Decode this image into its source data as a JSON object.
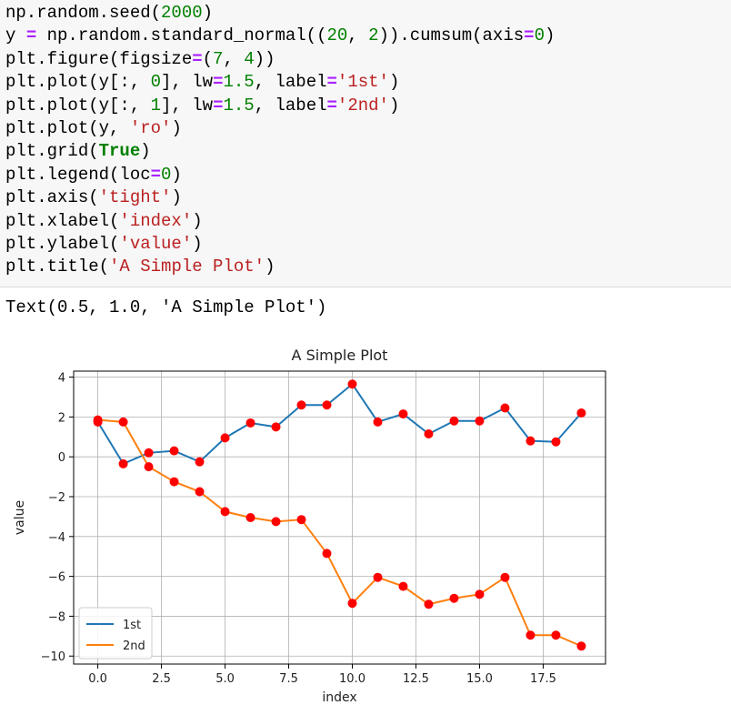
{
  "code_cell": {
    "lines": [
      [
        {
          "t": "np.random.seed(",
          "c": ""
        },
        {
          "t": "2000",
          "c": "num"
        },
        {
          "t": ")",
          "c": ""
        }
      ],
      [
        {
          "t": "y ",
          "c": ""
        },
        {
          "t": "=",
          "c": "op"
        },
        {
          "t": " np.random.standard_normal((",
          "c": ""
        },
        {
          "t": "20",
          "c": "num"
        },
        {
          "t": ", ",
          "c": ""
        },
        {
          "t": "2",
          "c": "num"
        },
        {
          "t": ")).cumsum(axis",
          "c": ""
        },
        {
          "t": "=",
          "c": "op"
        },
        {
          "t": "0",
          "c": "num"
        },
        {
          "t": ")",
          "c": ""
        }
      ],
      [
        {
          "t": "plt.figure(figsize",
          "c": ""
        },
        {
          "t": "=",
          "c": "op"
        },
        {
          "t": "(",
          "c": ""
        },
        {
          "t": "7",
          "c": "num"
        },
        {
          "t": ", ",
          "c": ""
        },
        {
          "t": "4",
          "c": "num"
        },
        {
          "t": "))",
          "c": ""
        }
      ],
      [
        {
          "t": "plt.plot(y[:, ",
          "c": ""
        },
        {
          "t": "0",
          "c": "num"
        },
        {
          "t": "], lw",
          "c": ""
        },
        {
          "t": "=",
          "c": "op"
        },
        {
          "t": "1.5",
          "c": "num"
        },
        {
          "t": ", label",
          "c": ""
        },
        {
          "t": "=",
          "c": "op"
        },
        {
          "t": "'1st'",
          "c": "str"
        },
        {
          "t": ")",
          "c": ""
        }
      ],
      [
        {
          "t": "plt.plot(y[:, ",
          "c": ""
        },
        {
          "t": "1",
          "c": "num"
        },
        {
          "t": "], lw",
          "c": ""
        },
        {
          "t": "=",
          "c": "op"
        },
        {
          "t": "1.5",
          "c": "num"
        },
        {
          "t": ", label",
          "c": ""
        },
        {
          "t": "=",
          "c": "op"
        },
        {
          "t": "'2nd'",
          "c": "str"
        },
        {
          "t": ")",
          "c": ""
        }
      ],
      [
        {
          "t": "plt.plot(y, ",
          "c": ""
        },
        {
          "t": "'ro'",
          "c": "str"
        },
        {
          "t": ")",
          "c": ""
        }
      ],
      [
        {
          "t": "plt.grid(",
          "c": ""
        },
        {
          "t": "True",
          "c": "kw"
        },
        {
          "t": ")",
          "c": ""
        }
      ],
      [
        {
          "t": "plt.legend(loc",
          "c": ""
        },
        {
          "t": "=",
          "c": "op"
        },
        {
          "t": "0",
          "c": "num"
        },
        {
          "t": ")",
          "c": ""
        }
      ],
      [
        {
          "t": "plt.axis(",
          "c": ""
        },
        {
          "t": "'tight'",
          "c": "str"
        },
        {
          "t": ")",
          "c": ""
        }
      ],
      [
        {
          "t": "plt.xlabel(",
          "c": ""
        },
        {
          "t": "'index'",
          "c": "str"
        },
        {
          "t": ")",
          "c": ""
        }
      ],
      [
        {
          "t": "plt.ylabel(",
          "c": ""
        },
        {
          "t": "'value'",
          "c": "str"
        },
        {
          "t": ")",
          "c": ""
        }
      ],
      [
        {
          "t": "plt.title(",
          "c": ""
        },
        {
          "t": "'A Simple Plot'",
          "c": "str"
        },
        {
          "t": ")",
          "c": ""
        }
      ]
    ]
  },
  "output_text": "Text(0.5, 1.0, 'A Simple Plot')",
  "chart_data": {
    "type": "line",
    "title": "A Simple Plot",
    "xlabel": "index",
    "ylabel": "value",
    "x": [
      0,
      1,
      2,
      3,
      4,
      5,
      6,
      7,
      8,
      9,
      10,
      11,
      12,
      13,
      14,
      15,
      16,
      17,
      18,
      19
    ],
    "xlim": [
      -0.95,
      19.95
    ],
    "ylim": [
      -10.4,
      4.3
    ],
    "xticks": [
      0.0,
      2.5,
      5.0,
      7.5,
      10.0,
      12.5,
      15.0,
      17.5
    ],
    "xtick_labels": [
      "0.0",
      "2.5",
      "5.0",
      "7.5",
      "10.0",
      "12.5",
      "15.0",
      "17.5"
    ],
    "yticks": [
      4,
      2,
      0,
      -2,
      -4,
      -6,
      -8,
      -10
    ],
    "ytick_labels": [
      "4",
      "2",
      "0",
      "−2",
      "−4",
      "−6",
      "−8",
      "−10"
    ],
    "grid": true,
    "legend_position": "lower-left",
    "marker_color": "#ff0000",
    "series": [
      {
        "name": "1st",
        "color": "#1f77b4",
        "values": [
          1.75,
          -0.35,
          0.2,
          0.3,
          -0.25,
          0.95,
          1.7,
          1.5,
          2.6,
          2.6,
          3.65,
          1.75,
          2.15,
          1.15,
          1.8,
          1.8,
          2.45,
          0.8,
          0.75,
          2.2
        ]
      },
      {
        "name": "2nd",
        "color": "#ff7f0e",
        "values": [
          1.85,
          1.75,
          -0.5,
          -1.25,
          -1.75,
          -2.75,
          -3.05,
          -3.25,
          -3.15,
          -4.85,
          -7.35,
          -6.05,
          -6.5,
          -7.4,
          -7.1,
          -6.9,
          -6.05,
          -8.95,
          -8.95,
          -9.5
        ]
      }
    ]
  }
}
